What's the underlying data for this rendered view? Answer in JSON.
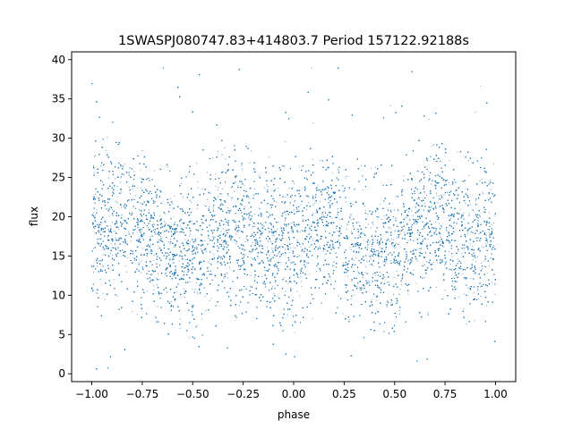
{
  "chart_data": {
    "type": "scatter",
    "title": "1SWASPJ080747.83+414803.7 Period 157122.92188s",
    "xlabel": "phase",
    "ylabel": "flux",
    "xlim": [
      -1.1,
      1.1
    ],
    "ylim": [
      -1.0,
      41.0
    ],
    "xticks": [
      -1.0,
      -0.75,
      -0.5,
      -0.25,
      0.0,
      0.25,
      0.5,
      0.75,
      1.0
    ],
    "xtick_labels": [
      "−1.00",
      "−0.75",
      "−0.50",
      "−0.25",
      "0.00",
      "0.25",
      "0.50",
      "0.75",
      "1.00"
    ],
    "yticks": [
      0,
      5,
      10,
      15,
      20,
      25,
      30,
      35,
      40
    ],
    "ytick_labels": [
      "0",
      "5",
      "10",
      "15",
      "20",
      "25",
      "30",
      "35",
      "40"
    ],
    "grid": false,
    "point_color": "#1f77b4",
    "profile": {
      "phase": [
        -1.0,
        -0.9,
        -0.8,
        -0.7,
        -0.6,
        -0.5,
        -0.4,
        -0.3,
        -0.2,
        -0.1,
        0.0,
        0.1,
        0.2,
        0.3,
        0.4,
        0.5,
        0.6,
        0.7,
        0.8,
        0.9,
        1.0
      ],
      "median_flux": [
        18,
        19.5,
        19,
        17,
        15.5,
        15,
        17.5,
        19,
        18,
        16.5,
        16.5,
        18.5,
        18,
        16,
        15,
        15.5,
        18,
        19.5,
        18,
        16.5,
        18
      ],
      "lower_envelope": [
        8,
        9,
        8.5,
        6.5,
        6,
        5.5,
        7,
        8.5,
        8,
        7,
        6.5,
        8,
        8,
        6,
        5.5,
        6,
        8,
        9,
        8.5,
        7,
        8
      ],
      "upper_envelope": [
        28,
        29,
        28,
        26,
        25,
        25,
        27.5,
        28,
        27.5,
        26,
        26.5,
        28,
        27.5,
        26,
        25,
        25.5,
        27.5,
        29,
        28,
        26.5,
        28
      ]
    },
    "approx_point_count": 26000
  }
}
